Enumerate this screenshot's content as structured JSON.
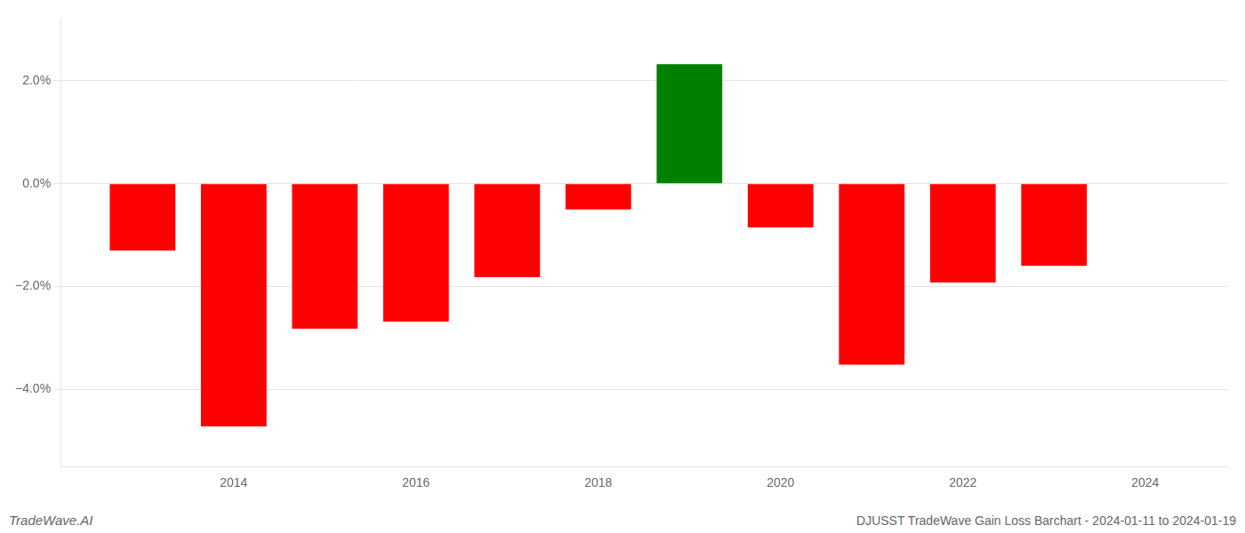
{
  "chart_data": {
    "type": "bar",
    "x": [
      2013,
      2014,
      2015,
      2016,
      2017,
      2018,
      2019,
      2020,
      2021,
      2022,
      2023
    ],
    "values": [
      -1.3,
      -4.72,
      -2.82,
      -2.68,
      -1.82,
      -0.5,
      2.32,
      -0.85,
      -3.52,
      -1.92,
      -1.6
    ],
    "colors": [
      "red",
      "red",
      "red",
      "red",
      "red",
      "red",
      "green",
      "red",
      "red",
      "red",
      "red"
    ],
    "xlim": [
      2012.1,
      2024.9
    ],
    "xticks": [
      2014,
      2016,
      2018,
      2020,
      2022,
      2024
    ],
    "ylim": [
      -5.5,
      3.2
    ],
    "yticks": [
      {
        "value": -4.0,
        "label": "−4.0%"
      },
      {
        "value": -2.0,
        "label": "−2.0%"
      },
      {
        "value": 0.0,
        "label": "0.0%"
      },
      {
        "value": 2.0,
        "label": "2.0%"
      }
    ],
    "grid": true,
    "annotations": [
      "TradeWave.AI",
      "DJUSST TradeWave Gain Loss Barchart - 2024-01-11 to 2024-01-19"
    ]
  }
}
